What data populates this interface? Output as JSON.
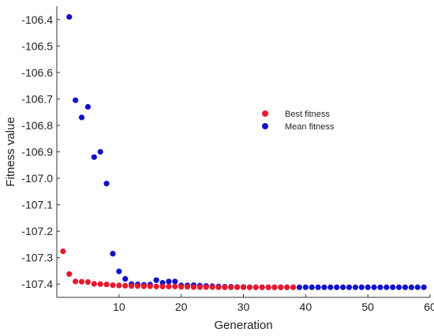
{
  "chart_data": {
    "type": "scatter",
    "xlabel": "Generation",
    "ylabel": "Fitness value",
    "xlim": [
      0,
      60
    ],
    "ylim": [
      -107.45,
      -106.35
    ],
    "x_ticks": [
      10,
      20,
      30,
      40,
      50,
      60
    ],
    "x_tick_labels": [
      "10",
      "20",
      "30",
      "40",
      "50",
      "60"
    ],
    "y_ticks": [
      -106.4,
      -106.5,
      -106.6,
      -106.7,
      -106.8,
      -106.9,
      -107.0,
      -107.1,
      -107.2,
      -107.3,
      -107.4
    ],
    "y_tick_labels": [
      "-106.4",
      "-106.5",
      "-106.6",
      "-106.7",
      "-106.8",
      "-106.9",
      "-107.0",
      "-107.1",
      "-107.2",
      "-107.3",
      "-107.4"
    ],
    "grid": false,
    "legend_position": "upper-right",
    "series": [
      {
        "name": "Best fitness",
        "color": "#e8192c",
        "x": [
          1,
          2,
          3,
          4,
          5,
          6,
          7,
          8,
          9,
          10,
          11,
          12,
          13,
          14,
          15,
          16,
          17,
          18,
          19,
          20,
          21,
          22,
          23,
          24,
          25,
          26,
          27,
          28,
          29,
          30,
          31,
          32,
          33,
          34,
          35,
          36,
          37,
          38
        ],
        "y": [
          -107.276,
          -107.362,
          -107.39,
          -107.391,
          -107.392,
          -107.399,
          -107.4,
          -107.401,
          -107.404,
          -107.405,
          -107.406,
          -107.407,
          -107.407,
          -107.408,
          -107.408,
          -107.409,
          -107.409,
          -107.409,
          -107.409,
          -107.41,
          -107.41,
          -107.411,
          -107.411,
          -107.411,
          -107.411,
          -107.412,
          -107.412,
          -107.412,
          -107.412,
          -107.412,
          -107.412,
          -107.412,
          -107.412,
          -107.412,
          -107.412,
          -107.412,
          -107.412,
          -107.412
        ]
      },
      {
        "name": "Mean fitness",
        "color": "#1010cc",
        "x": [
          2,
          3,
          4,
          5,
          6,
          7,
          8,
          9,
          10,
          11,
          12,
          13,
          14,
          15,
          16,
          17,
          18,
          19,
          20,
          21,
          22,
          23,
          24,
          25,
          26,
          27,
          28,
          29,
          30,
          31,
          32,
          33,
          34,
          35,
          36,
          37,
          38,
          39,
          40,
          41,
          42,
          43,
          44,
          45,
          46,
          47,
          48,
          49,
          50,
          51,
          52,
          53,
          54,
          55,
          56,
          57,
          58,
          59
        ],
        "y": [
          -106.39,
          -106.705,
          -106.77,
          -106.73,
          -106.92,
          -106.9,
          -107.02,
          -107.285,
          -107.352,
          -107.38,
          -107.4,
          -107.401,
          -107.403,
          -107.402,
          -107.385,
          -107.395,
          -107.39,
          -107.39,
          -107.405,
          -107.405,
          -107.404,
          -107.406,
          -107.407,
          -107.408,
          -107.409,
          -107.41,
          -107.41,
          -107.411,
          -107.411,
          -107.412,
          -107.412,
          -107.412,
          -107.412,
          -107.412,
          -107.412,
          -107.412,
          -107.412,
          -107.412,
          -107.412,
          -107.412,
          -107.412,
          -107.412,
          -107.412,
          -107.412,
          -107.412,
          -107.412,
          -107.412,
          -107.412,
          -107.412,
          -107.412,
          -107.412,
          -107.412,
          -107.412,
          -107.412,
          -107.412,
          -107.412,
          -107.412,
          -107.412
        ]
      }
    ]
  }
}
